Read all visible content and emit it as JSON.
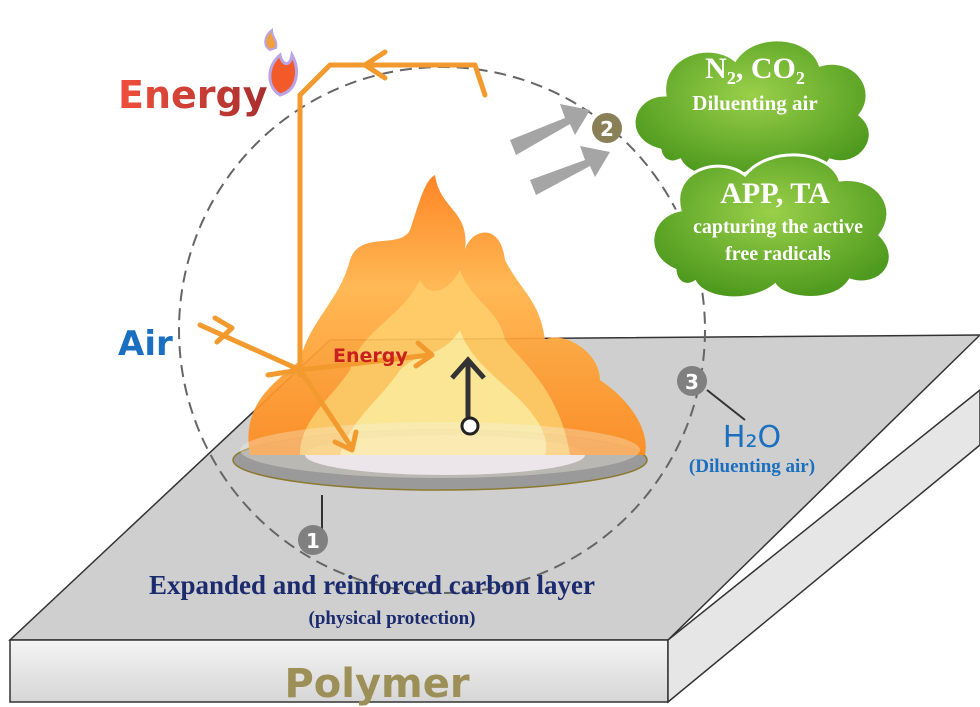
{
  "energy_top": "Energy",
  "air": "Air",
  "energy_inner": "Energy",
  "cloud_top": {
    "title": "N₂, CO₂",
    "text": "Diluenting air"
  },
  "cloud_bottom": {
    "title": "APP, TA",
    "lines": [
      "capturing the active",
      "free radicals"
    ]
  },
  "water": {
    "title": "H₂O",
    "text": "(Diluenting air)"
  },
  "carbon_layer": {
    "title": "Expanded and reinforced carbon layer",
    "text": "(physical protection)"
  },
  "substrate": "Polymer",
  "markers": [
    "1",
    "2",
    "3"
  ]
}
